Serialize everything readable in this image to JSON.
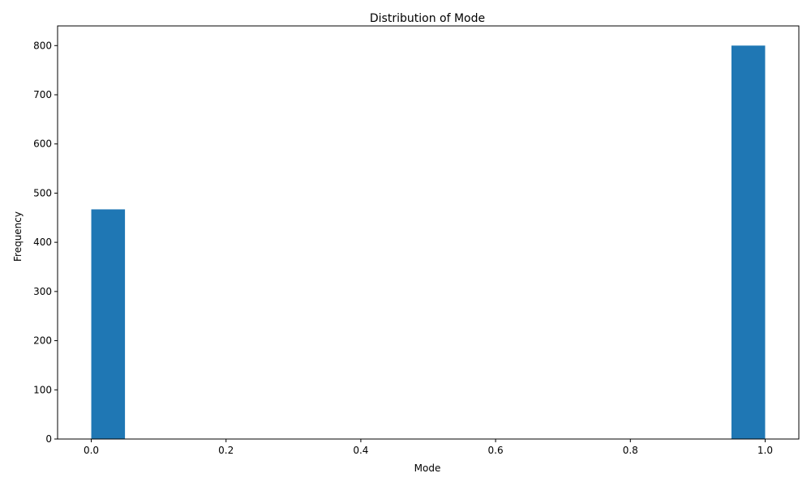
{
  "chart_data": {
    "type": "bar",
    "subtype": "histogram",
    "title": "Distribution of Mode",
    "xlabel": "Mode",
    "ylabel": "Frequency",
    "bins": [
      {
        "start": 0.0,
        "end": 0.05,
        "count": 467
      },
      {
        "start": 0.95,
        "end": 1.0,
        "count": 800
      }
    ],
    "xlim": [
      -0.05,
      1.05
    ],
    "ylim": [
      0,
      840
    ],
    "xticks": [
      0.0,
      0.2,
      0.4,
      0.6,
      0.8,
      1.0
    ],
    "xtick_labels": [
      "0.0",
      "0.2",
      "0.4",
      "0.6",
      "0.8",
      "1.0"
    ],
    "yticks": [
      0,
      100,
      200,
      300,
      400,
      500,
      600,
      700,
      800
    ],
    "ytick_labels": [
      "0",
      "100",
      "200",
      "300",
      "400",
      "500",
      "600",
      "700",
      "800"
    ],
    "grid": false,
    "legend": "none",
    "bar_color": "#1f77b4"
  }
}
